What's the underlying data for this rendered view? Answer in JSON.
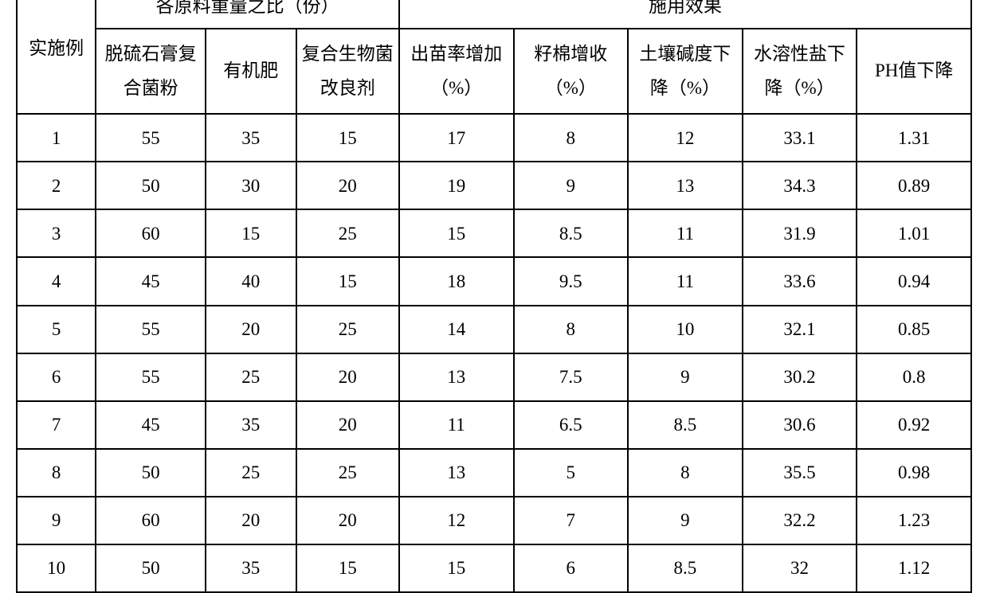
{
  "table": {
    "type": "table",
    "background_color": "#ffffff",
    "border_color": "#000000",
    "text_color": "#000000",
    "font_family": "SimSun",
    "header": {
      "row_label": "实施例",
      "group1_label": "各原料重量之比（份）",
      "group2_label": "施用效果",
      "sub_cols": {
        "c1": "脱硫石膏复合菌粉",
        "c2": "有机肥",
        "c3": "复合生物菌改良剂",
        "c4": "出苗率增加（%）",
        "c5": "籽棉增收（%）",
        "c6": "土壤碱度下降（%）",
        "c7": "水溶性盐下降（%）",
        "c8": "PH值下降"
      }
    },
    "rows": [
      {
        "n": "1",
        "c1": "55",
        "c2": "35",
        "c3": "15",
        "c4": "17",
        "c5": "8",
        "c6": "12",
        "c7": "33.1",
        "c8": "1.31"
      },
      {
        "n": "2",
        "c1": "50",
        "c2": "30",
        "c3": "20",
        "c4": "19",
        "c5": "9",
        "c6": "13",
        "c7": "34.3",
        "c8": "0.89"
      },
      {
        "n": "3",
        "c1": "60",
        "c2": "15",
        "c3": "25",
        "c4": "15",
        "c5": "8.5",
        "c6": "11",
        "c7": "31.9",
        "c8": "1.01"
      },
      {
        "n": "4",
        "c1": "45",
        "c2": "40",
        "c3": "15",
        "c4": "18",
        "c5": "9.5",
        "c6": "11",
        "c7": "33.6",
        "c8": "0.94"
      },
      {
        "n": "5",
        "c1": "55",
        "c2": "20",
        "c3": "25",
        "c4": "14",
        "c5": "8",
        "c6": "10",
        "c7": "32.1",
        "c8": "0.85"
      },
      {
        "n": "6",
        "c1": "55",
        "c2": "25",
        "c3": "20",
        "c4": "13",
        "c5": "7.5",
        "c6": "9",
        "c7": "30.2",
        "c8": "0.8"
      },
      {
        "n": "7",
        "c1": "45",
        "c2": "35",
        "c3": "20",
        "c4": "11",
        "c5": "6.5",
        "c6": "8.5",
        "c7": "30.6",
        "c8": "0.92"
      },
      {
        "n": "8",
        "c1": "50",
        "c2": "25",
        "c3": "25",
        "c4": "13",
        "c5": "5",
        "c6": "8",
        "c7": "35.5",
        "c8": "0.98"
      },
      {
        "n": "9",
        "c1": "60",
        "c2": "20",
        "c3": "20",
        "c4": "12",
        "c5": "7",
        "c6": "9",
        "c7": "32.2",
        "c8": "1.23"
      },
      {
        "n": "10",
        "c1": "50",
        "c2": "35",
        "c3": "15",
        "c4": "15",
        "c5": "6",
        "c6": "8.5",
        "c7": "32",
        "c8": "1.12"
      }
    ],
    "col_widths_pct": [
      8.3,
      11.5,
      9.5,
      10.8,
      12,
      12,
      12,
      12,
      12
    ],
    "header_fontsize": 23,
    "body_fontsize": 23
  }
}
